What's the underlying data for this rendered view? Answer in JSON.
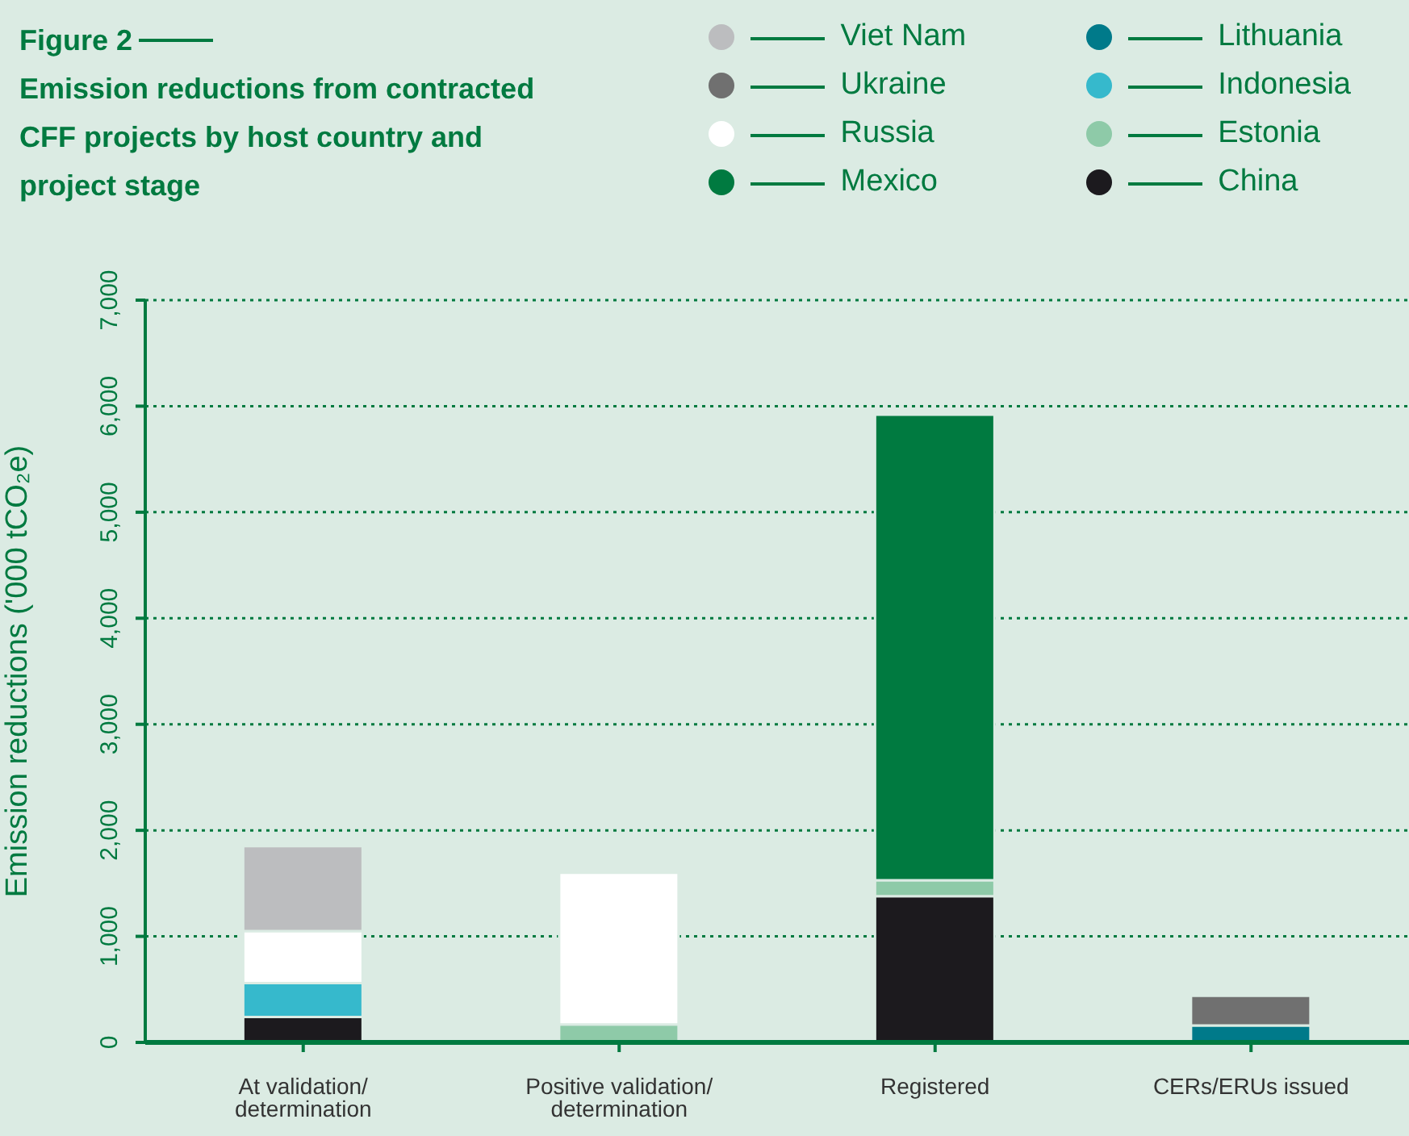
{
  "chart_data": {
    "type": "bar",
    "stacked": true,
    "title": "Figure 2",
    "subtitle": "Emission reductions from contracted CFF projects by host country and project stage",
    "ylabel": "Emission reductions ('000 tCO₂e)",
    "categories": [
      "At validation/ determination",
      "Positive validation/ determination",
      "Registered",
      "CERs/ERUs issued"
    ],
    "series": [
      {
        "name": "China",
        "color": "#1c1a1e",
        "values": [
          240,
          null,
          1380,
          null
        ]
      },
      {
        "name": "Estonia",
        "color": "#8ecaa8",
        "values": [
          null,
          170,
          150,
          null
        ]
      },
      {
        "name": "Indonesia",
        "color": "#36b9cc",
        "values": [
          320,
          null,
          null,
          null
        ]
      },
      {
        "name": "Lithuania",
        "color": "#007a8a",
        "values": [
          null,
          null,
          null,
          160
        ]
      },
      {
        "name": "Mexico",
        "color": "#007a40",
        "values": [
          null,
          null,
          4390,
          null
        ]
      },
      {
        "name": "Russia",
        "color": "#ffffff",
        "values": [
          490,
          1430,
          null,
          null
        ]
      },
      {
        "name": "Ukraine",
        "color": "#707070",
        "values": [
          null,
          null,
          null,
          280
        ]
      },
      {
        "name": "Viet Nam",
        "color": "#bcbdbf",
        "values": [
          800,
          null,
          null,
          null
        ]
      }
    ],
    "ylim": [
      0,
      7000
    ],
    "yticks": [
      {
        "value": 0,
        "label": "0"
      },
      {
        "value": 1000,
        "label": "1,000"
      },
      {
        "value": 2000,
        "label": "2,000"
      },
      {
        "value": 3000,
        "label": "3,000"
      },
      {
        "value": 4000,
        "label": "4,000"
      },
      {
        "value": 5000,
        "label": "5,000"
      },
      {
        "value": 6000,
        "label": "6,000"
      },
      {
        "value": 7000,
        "label": "7,000"
      }
    ],
    "grid": "y",
    "legend": "top right"
  }
}
